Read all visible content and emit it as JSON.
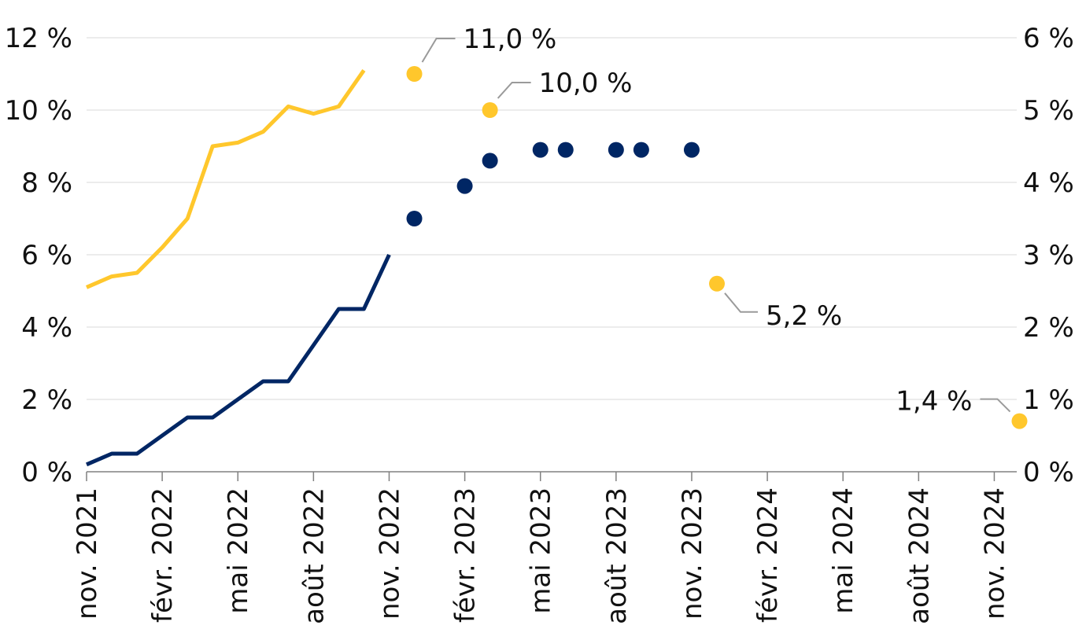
{
  "chart_data": {
    "type": "line",
    "title": "",
    "xlabel": "",
    "ylabel": "",
    "y_left": {
      "min": 0,
      "max": 12,
      "ticks": [
        "0 %",
        "2 %",
        "4 %",
        "6 %",
        "8 %",
        "10 %",
        "12 %"
      ]
    },
    "y_right": {
      "min": 0,
      "max": 6,
      "ticks": [
        "0 %",
        "1 %",
        "2 %",
        "3 %",
        "4 %",
        "5 %",
        "6 %"
      ]
    },
    "x_ticks": [
      "nov. 2021",
      "févr. 2022",
      "mai 2022",
      "août 2022",
      "nov. 2022",
      "févr. 2023",
      "mai 2023",
      "août 2023",
      "nov. 2023",
      "févr. 2024",
      "mai 2024",
      "août 2024",
      "nov. 2024"
    ],
    "grid": true,
    "legend": "none",
    "series": [
      {
        "style": "line",
        "axis": "left",
        "color": "#FFC72C",
        "points": [
          {
            "x": "2021-11",
            "y": 5.1
          },
          {
            "x": "2021-12",
            "y": 5.4
          },
          {
            "x": "2022-01",
            "y": 5.5
          },
          {
            "x": "2022-02",
            "y": 6.2
          },
          {
            "x": "2022-03",
            "y": 7.0
          },
          {
            "x": "2022-04",
            "y": 9.0
          },
          {
            "x": "2022-05",
            "y": 9.1
          },
          {
            "x": "2022-06",
            "y": 9.4
          },
          {
            "x": "2022-07",
            "y": 10.1
          },
          {
            "x": "2022-08",
            "y": 9.9
          },
          {
            "x": "2022-09",
            "y": 10.1
          },
          {
            "x": "2022-10",
            "y": 11.1
          }
        ]
      },
      {
        "style": "line",
        "axis": "right",
        "color": "#002664",
        "points": [
          {
            "x": "2021-11",
            "y": 0.1
          },
          {
            "x": "2021-12",
            "y": 0.25
          },
          {
            "x": "2022-01",
            "y": 0.25
          },
          {
            "x": "2022-02",
            "y": 0.5
          },
          {
            "x": "2022-03",
            "y": 0.75
          },
          {
            "x": "2022-04",
            "y": 0.75
          },
          {
            "x": "2022-05",
            "y": 1.0
          },
          {
            "x": "2022-06",
            "y": 1.25
          },
          {
            "x": "2022-07",
            "y": 1.25
          },
          {
            "x": "2022-08",
            "y": 1.75
          },
          {
            "x": "2022-09",
            "y": 2.25
          },
          {
            "x": "2022-10",
            "y": 2.25
          },
          {
            "x": "2022-11",
            "y": 3.0
          }
        ]
      },
      {
        "style": "dots",
        "axis": "right",
        "color": "#002664",
        "points": [
          {
            "x": "2022-12",
            "y": 3.5
          },
          {
            "x": "2023-02",
            "y": 3.95
          },
          {
            "x": "2023-03",
            "y": 4.3
          },
          {
            "x": "2023-05",
            "y": 4.45
          },
          {
            "x": "2023-06",
            "y": 4.45
          },
          {
            "x": "2023-08",
            "y": 4.45
          },
          {
            "x": "2023-09",
            "y": 4.45
          },
          {
            "x": "2023-11",
            "y": 4.45
          }
        ]
      },
      {
        "style": "dots",
        "axis": "left",
        "color": "#FFC72C",
        "points": [
          {
            "x": "2022-12",
            "y": 11.0,
            "label": "11,0 %"
          },
          {
            "x": "2023-03",
            "y": 10.0,
            "label": "10,0 %"
          },
          {
            "x": "2023-12",
            "y": 5.2,
            "label": "5,2 %"
          },
          {
            "x": "2024-12",
            "y": 1.4,
            "label": "1,4 %"
          }
        ]
      }
    ]
  }
}
